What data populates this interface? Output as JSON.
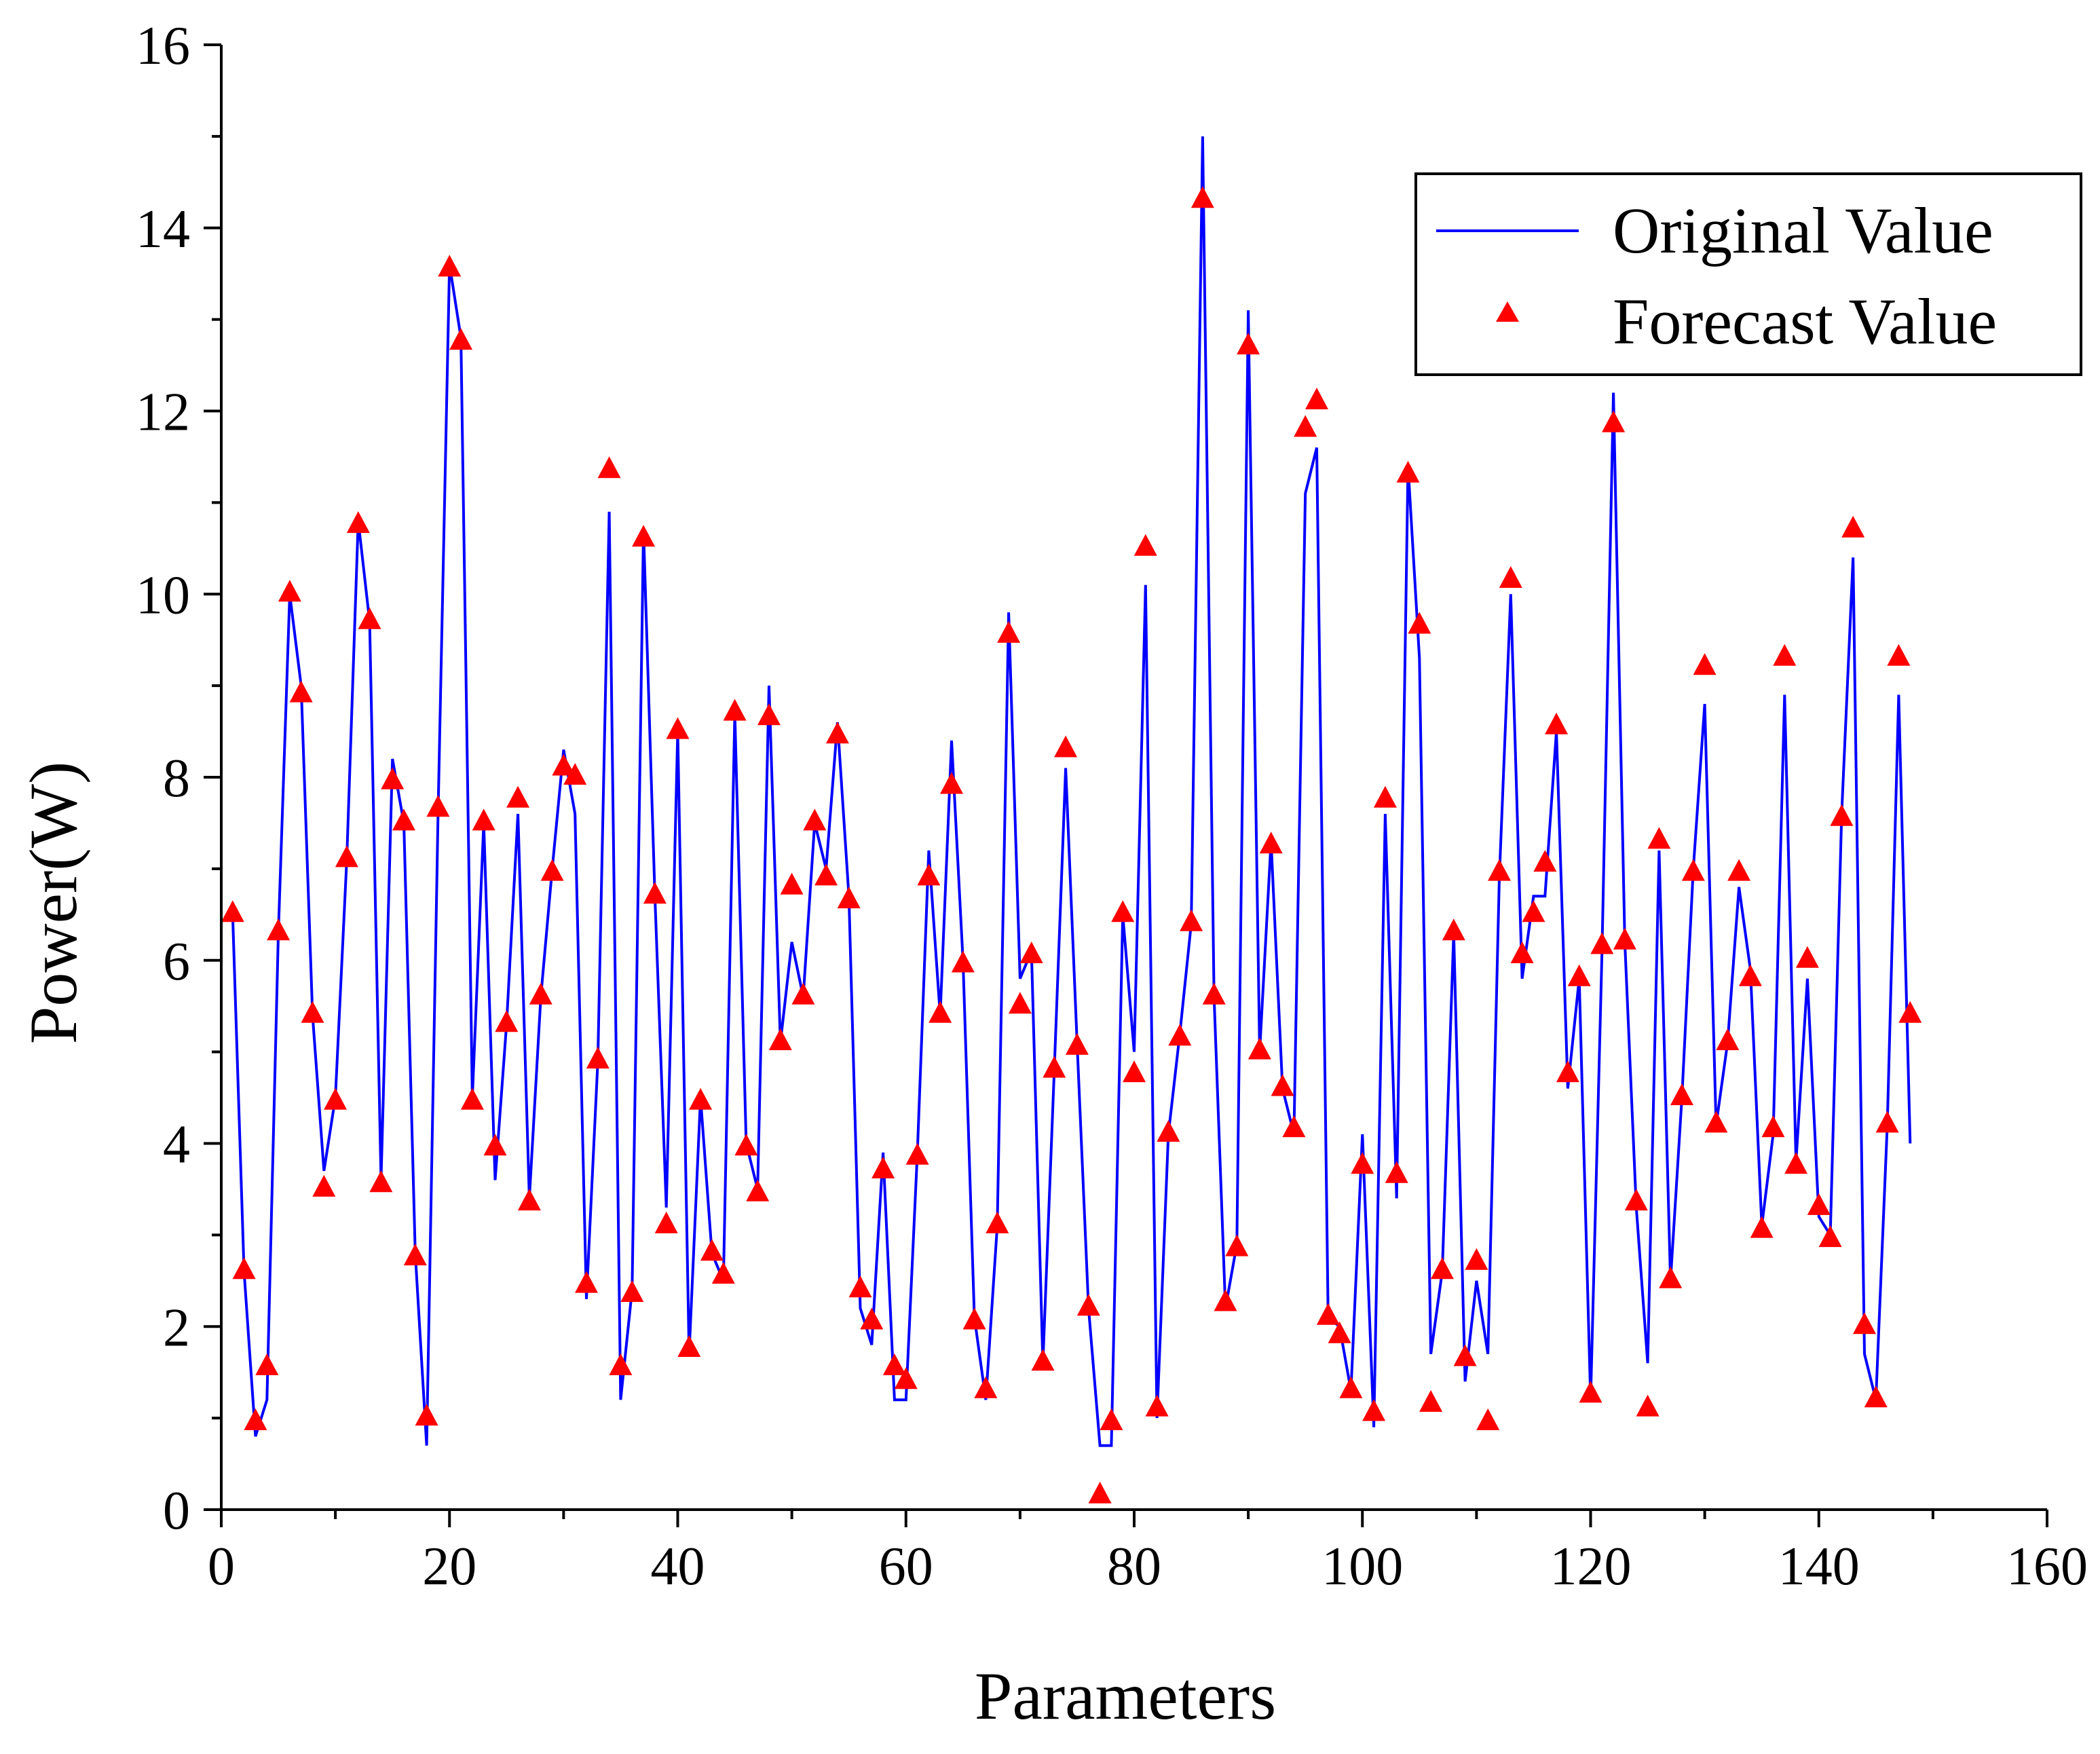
{
  "chart_data": {
    "type": "line",
    "title": "",
    "xlabel": "Parameters",
    "ylabel": "Power(W)",
    "xlim": [
      0,
      160
    ],
    "ylim": [
      0,
      16
    ],
    "xticks": [
      0,
      20,
      40,
      60,
      80,
      100,
      120,
      140,
      160
    ],
    "yticks": [
      0,
      2,
      4,
      6,
      8,
      10,
      12,
      14,
      16
    ],
    "grid": false,
    "legend_position": "top-right",
    "colors": {
      "original": "#0000ff",
      "forecast": "#ff0000"
    },
    "series": [
      {
        "name": "Original Value",
        "style": "line",
        "x": [
          1,
          2,
          3,
          4,
          5,
          6,
          7,
          8,
          9,
          10,
          11,
          12,
          13,
          14,
          15,
          16,
          17,
          18,
          19,
          20,
          21,
          22,
          23,
          24,
          25,
          26,
          27,
          28,
          29,
          30,
          31,
          32,
          33,
          34,
          35,
          36,
          37,
          38,
          39,
          40,
          41,
          42,
          43,
          44,
          45,
          46,
          47,
          48,
          49,
          50,
          51,
          52,
          53,
          54,
          55,
          56,
          57,
          58,
          59,
          60,
          61,
          62,
          63,
          64,
          65,
          66,
          67,
          68,
          69,
          70,
          71,
          72,
          73,
          74,
          75,
          76,
          77,
          78,
          79,
          80,
          81,
          82,
          83,
          84,
          85,
          86,
          87,
          88,
          89,
          90,
          91,
          92,
          93,
          94,
          95,
          96,
          97,
          98,
          99,
          100,
          101,
          102,
          103,
          104,
          105,
          106,
          107,
          108,
          109,
          110,
          111,
          112,
          113,
          114,
          115,
          116,
          117,
          118,
          119,
          120,
          121,
          122,
          123,
          124,
          125,
          126,
          127,
          128,
          129,
          130,
          131,
          132,
          133,
          134,
          135,
          136,
          137,
          138,
          139,
          140,
          141,
          142,
          143,
          144,
          145,
          146,
          147,
          148
        ],
        "y": [
          6.5,
          2.6,
          0.8,
          1.2,
          6.3,
          10.0,
          9.0,
          5.4,
          3.7,
          4.5,
          7.1,
          10.8,
          9.7,
          3.6,
          8.2,
          7.5,
          2.8,
          0.7,
          7.6,
          13.6,
          12.8,
          4.5,
          7.5,
          3.6,
          5.3,
          7.6,
          3.4,
          5.6,
          7.0,
          8.3,
          7.6,
          2.3,
          4.9,
          10.9,
          1.2,
          2.4,
          10.7,
          6.7,
          3.3,
          8.5,
          1.7,
          4.5,
          2.8,
          2.5,
          8.7,
          4.0,
          3.5,
          9.0,
          5.1,
          6.2,
          5.6,
          7.5,
          7.0,
          8.6,
          6.7,
          2.2,
          1.8,
          3.9,
          1.2,
          1.2,
          3.9,
          7.2,
          5.4,
          8.4,
          6.0,
          2.1,
          1.2,
          3.1,
          9.8,
          5.8,
          6.1,
          1.6,
          4.8,
          8.1,
          5.1,
          2.2,
          0.7,
          0.7,
          6.5,
          5.0,
          10.1,
          1.0,
          4.1,
          5.2,
          6.4,
          15.0,
          5.6,
          2.2,
          2.9,
          13.1,
          5.0,
          7.3,
          4.6,
          4.1,
          11.1,
          11.6,
          2.1,
          2.0,
          1.3,
          4.1,
          0.9,
          7.6,
          3.4,
          11.4,
          9.3,
          1.7,
          2.6,
          6.3,
          1.4,
          2.5,
          1.7,
          6.9,
          10.0,
          5.8,
          6.7,
          6.7,
          8.5,
          4.6,
          5.8,
          1.2,
          6.1,
          12.2,
          6.2,
          3.3,
          1.6,
          7.2,
          2.5,
          4.5,
          7.0,
          8.8,
          4.2,
          5.1,
          6.8,
          5.9,
          3.1,
          4.1,
          8.9,
          3.8,
          5.8,
          3.2,
          3.0,
          7.6,
          10.4,
          1.7,
          1.2,
          4.2,
          8.9,
          4.0
        ]
      },
      {
        "name": "Forecast Value",
        "style": "markers",
        "marker": "triangle",
        "x": [
          1,
          2,
          3,
          4,
          5,
          6,
          7,
          8,
          9,
          10,
          11,
          12,
          13,
          14,
          15,
          16,
          17,
          18,
          19,
          20,
          21,
          22,
          23,
          24,
          25,
          26,
          27,
          28,
          29,
          30,
          31,
          32,
          33,
          34,
          35,
          36,
          37,
          38,
          39,
          40,
          41,
          42,
          43,
          44,
          45,
          46,
          47,
          48,
          49,
          50,
          51,
          52,
          53,
          54,
          55,
          56,
          57,
          58,
          59,
          60,
          61,
          62,
          63,
          64,
          65,
          66,
          67,
          68,
          69,
          70,
          71,
          72,
          73,
          74,
          75,
          76,
          77,
          78,
          79,
          80,
          81,
          82,
          83,
          84,
          85,
          86,
          87,
          88,
          89,
          90,
          91,
          92,
          93,
          94,
          95,
          96,
          97,
          98,
          99,
          100,
          101,
          102,
          103,
          104,
          105,
          106,
          107,
          108,
          109,
          110,
          111,
          112,
          113,
          114,
          115,
          116,
          117,
          118,
          119,
          120,
          121,
          122,
          123,
          124,
          125,
          126,
          127,
          128,
          129,
          130,
          131,
          132,
          133,
          134,
          135,
          136,
          137,
          138,
          139,
          140,
          141,
          142,
          143,
          144,
          145,
          146,
          147,
          148
        ],
        "y": [
          6.5,
          2.6,
          0.95,
          1.55,
          6.3,
          10.0,
          8.9,
          5.4,
          3.5,
          4.45,
          7.1,
          10.75,
          9.7,
          3.55,
          7.95,
          7.5,
          2.75,
          1.0,
          7.65,
          13.55,
          12.75,
          4.45,
          7.5,
          3.95,
          5.3,
          7.75,
          3.35,
          5.6,
          6.95,
          8.1,
          8.0,
          2.45,
          4.9,
          11.35,
          1.55,
          2.35,
          10.6,
          6.7,
          3.1,
          8.5,
          1.75,
          4.45,
          2.8,
          2.55,
          8.7,
          3.95,
          3.45,
          8.65,
          5.1,
          6.8,
          5.6,
          7.5,
          6.9,
          8.45,
          6.65,
          2.4,
          2.05,
          3.7,
          1.55,
          1.4,
          3.85,
          6.9,
          5.4,
          7.9,
          5.95,
          2.05,
          1.3,
          3.1,
          9.55,
          5.5,
          6.05,
          1.6,
          4.8,
          8.3,
          5.05,
          2.2,
          0.15,
          0.95,
          6.5,
          4.75,
          10.5,
          1.1,
          4.1,
          5.15,
          6.4,
          14.3,
          5.6,
          2.25,
          2.85,
          12.7,
          5.0,
          7.25,
          4.6,
          4.15,
          11.8,
          12.1,
          2.1,
          1.9,
          1.3,
          3.75,
          1.05,
          7.75,
          3.65,
          11.3,
          9.65,
          1.15,
          2.6,
          6.3,
          1.65,
          2.7,
          0.95,
          6.95,
          10.15,
          6.05,
          6.5,
          7.05,
          8.55,
          4.75,
          5.8,
          1.25,
          6.15,
          11.85,
          6.2,
          3.35,
          1.1,
          7.3,
          2.5,
          4.5,
          6.95,
          9.2,
          4.2,
          5.1,
          6.95,
          5.8,
          3.05,
          4.15,
          9.3,
          3.75,
          6.0,
          3.3,
          2.95,
          7.55,
          10.7,
          2.0,
          1.2,
          4.2,
          9.3,
          5.4
        ]
      }
    ]
  }
}
